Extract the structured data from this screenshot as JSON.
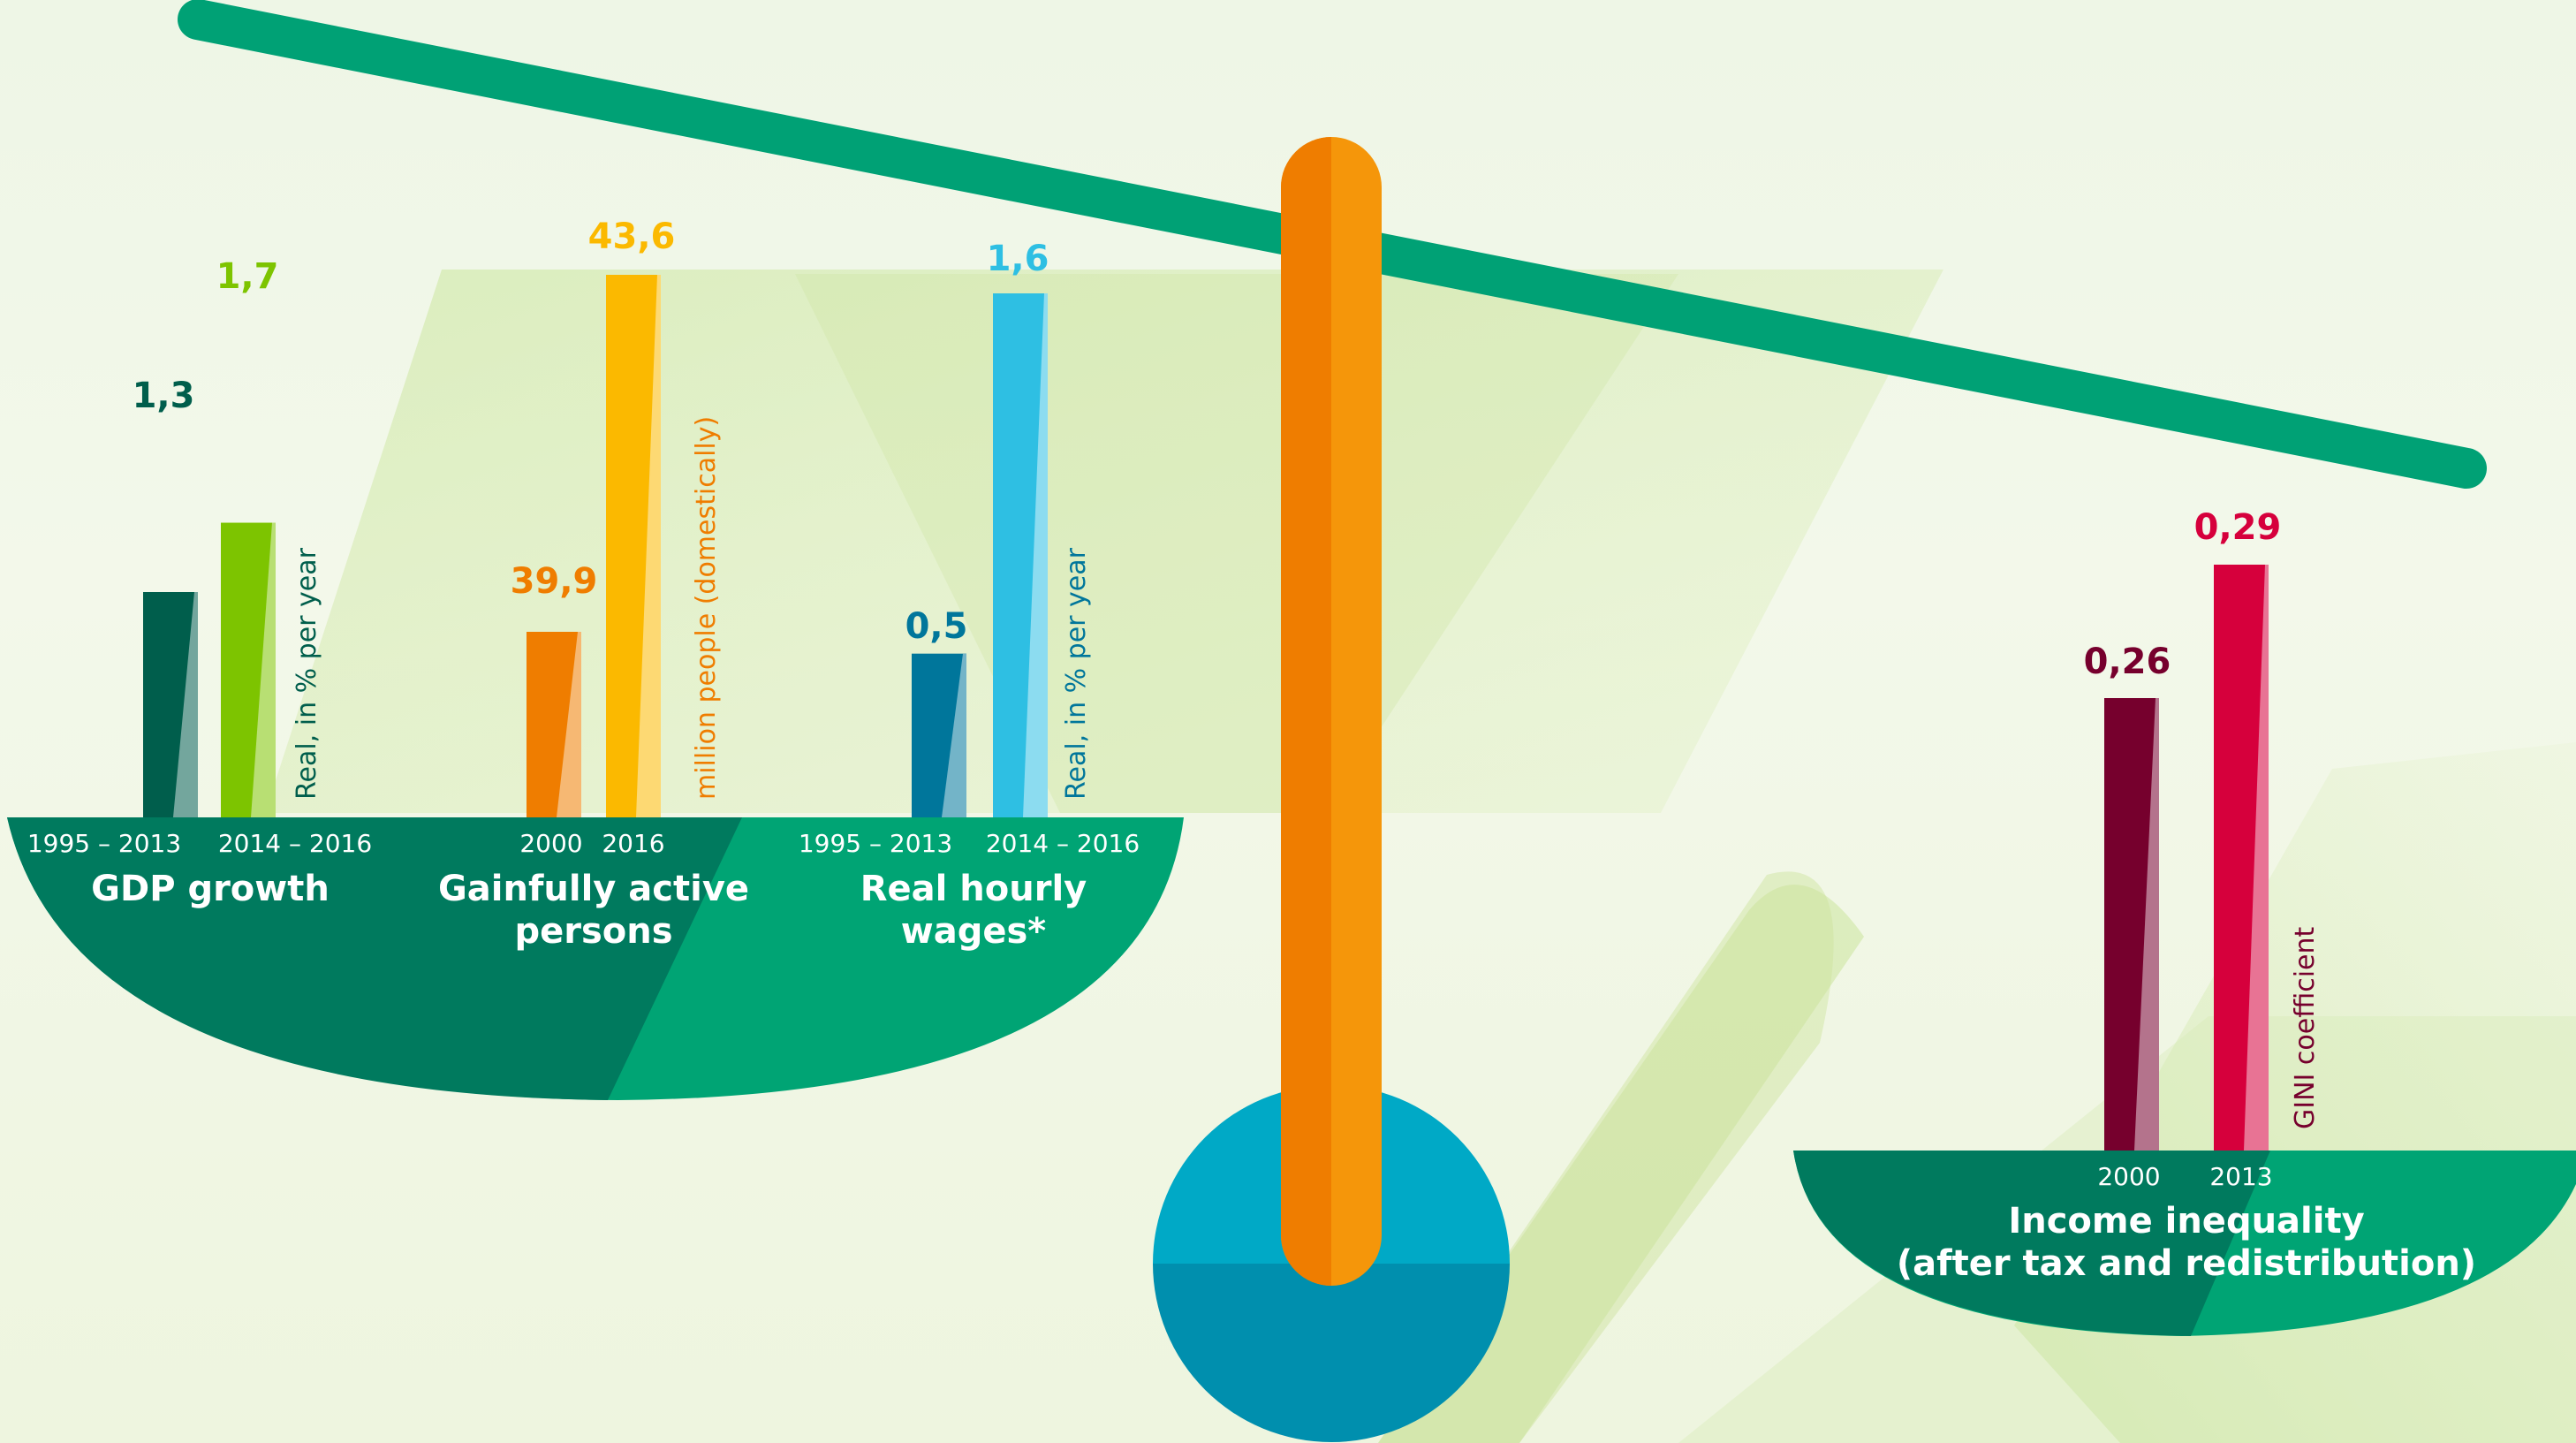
{
  "chart_data": [
    {
      "type": "bar",
      "title": "GDP growth",
      "unit": "Real, in % per year",
      "categories": [
        "1995 – 2013",
        "2014 – 2016"
      ],
      "values": [
        1.3,
        1.7
      ],
      "value_labels": [
        "1,3",
        "1,7"
      ],
      "colors": [
        "#005e4c",
        "#7dc400"
      ]
    },
    {
      "type": "bar",
      "title": "Gainfully active persons",
      "unit": "million people (domestically)",
      "categories": [
        "2000",
        "2016"
      ],
      "values": [
        39.9,
        43.6
      ],
      "value_labels": [
        "39,9",
        "43,6"
      ],
      "colors": [
        "#ef7d00",
        "#fbb900"
      ]
    },
    {
      "type": "bar",
      "title": "Real hourly wages*",
      "unit": "Real, in % per year",
      "categories": [
        "1995 – 2013",
        "2014 – 2016"
      ],
      "values": [
        0.5,
        1.6
      ],
      "value_labels": [
        "0,5",
        "1,6"
      ],
      "colors": [
        "#00769b",
        "#2ebfe3"
      ]
    },
    {
      "type": "bar",
      "title": "Income inequality (after tax and redistribution)",
      "unit": "GINI coefficient",
      "categories": [
        "2000",
        "2013"
      ],
      "values": [
        0.26,
        0.29
      ],
      "value_labels": [
        "0,26",
        "0,29"
      ],
      "colors": [
        "#76002d",
        "#d6003c"
      ]
    }
  ],
  "left_pan": {
    "gdp_title": "GDP growth",
    "persons_title_line1": "Gainfully active",
    "persons_title_line2": "persons",
    "wages_title_line1": "Real hourly",
    "wages_title_line2": "wages*"
  },
  "right_pan": {
    "title_line1": "Income inequality",
    "title_line2": "(after tax and redistribution)"
  },
  "colors": {
    "beam": "#00a175",
    "pan_dark": "#007a5e",
    "pan_light": "#00a474",
    "post_dark": "#ef7d00",
    "post_light": "#f5960a",
    "base_top": "#00a9c6",
    "base_bottom": "#008fae",
    "gdp_value_text": "#005e4c",
    "gdp_unit_text": "#005e4c",
    "persons_value_1990_text": "#ef7d00",
    "persons_value_2016_text": "#fbb900",
    "persons_unit_text": "#ef7d00",
    "wages_value_1_text": "#00769b",
    "wages_value_2_text": "#2ebfe3",
    "wages_unit_text": "#00769b",
    "gini_value_1_text": "#76002d",
    "gini_value_2_text": "#d6003c",
    "gini_unit_text": "#76002d"
  }
}
